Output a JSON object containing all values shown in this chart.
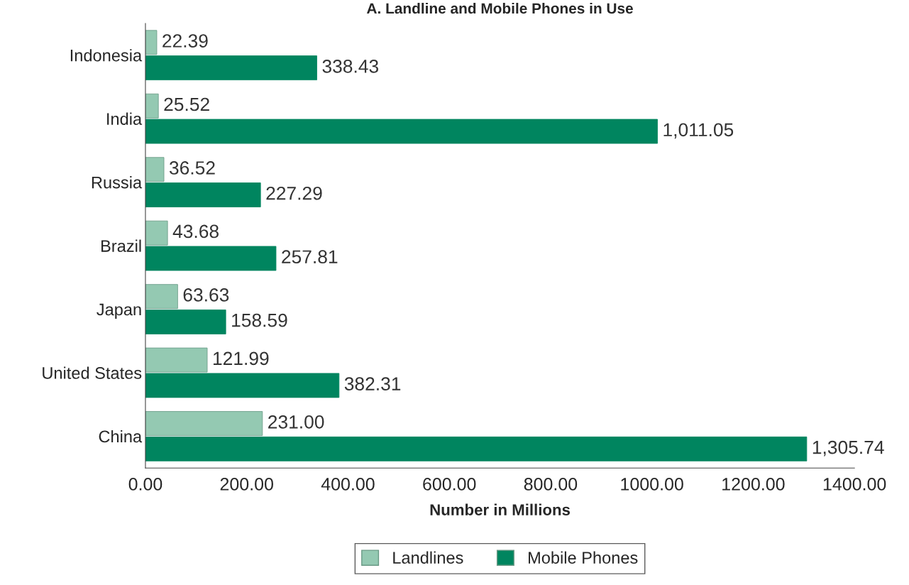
{
  "chart_data": {
    "type": "bar",
    "orientation": "horizontal",
    "title": "A. Landline and Mobile Phones in Use",
    "xlabel": "Number in Millions",
    "categories": [
      "Indonesia",
      "India",
      "Russia",
      "Brazil",
      "Japan",
      "United States",
      "China"
    ],
    "series": [
      {
        "name": "Landlines",
        "color": "#94c9b2",
        "values": [
          22.39,
          25.52,
          36.52,
          43.68,
          63.63,
          121.99,
          231.0
        ],
        "value_labels": [
          "22.39",
          "25.52",
          "36.52",
          "43.68",
          "63.63",
          "121.99",
          "231.00"
        ]
      },
      {
        "name": "Mobile Phones",
        "color": "#00855f",
        "values": [
          338.43,
          1011.05,
          227.29,
          257.81,
          158.59,
          382.31,
          1305.74
        ],
        "value_labels": [
          "338.43",
          "1,011.05",
          "227.29",
          "257.81",
          "158.59",
          "382.31",
          "1,305.74"
        ]
      }
    ],
    "xlim": [
      0,
      1400
    ],
    "xticks": [
      {
        "value": 0,
        "label": "0.00"
      },
      {
        "value": 200,
        "label": "200.00"
      },
      {
        "value": 400,
        "label": "400.00"
      },
      {
        "value": 600,
        "label": "600.00"
      },
      {
        "value": 800,
        "label": "800.00"
      },
      {
        "value": 1000,
        "label": "1000.00"
      },
      {
        "value": 1200,
        "label": "1200.00"
      },
      {
        "value": 1400,
        "label": "1400.00"
      }
    ],
    "grid": false,
    "legend": "bottom"
  }
}
